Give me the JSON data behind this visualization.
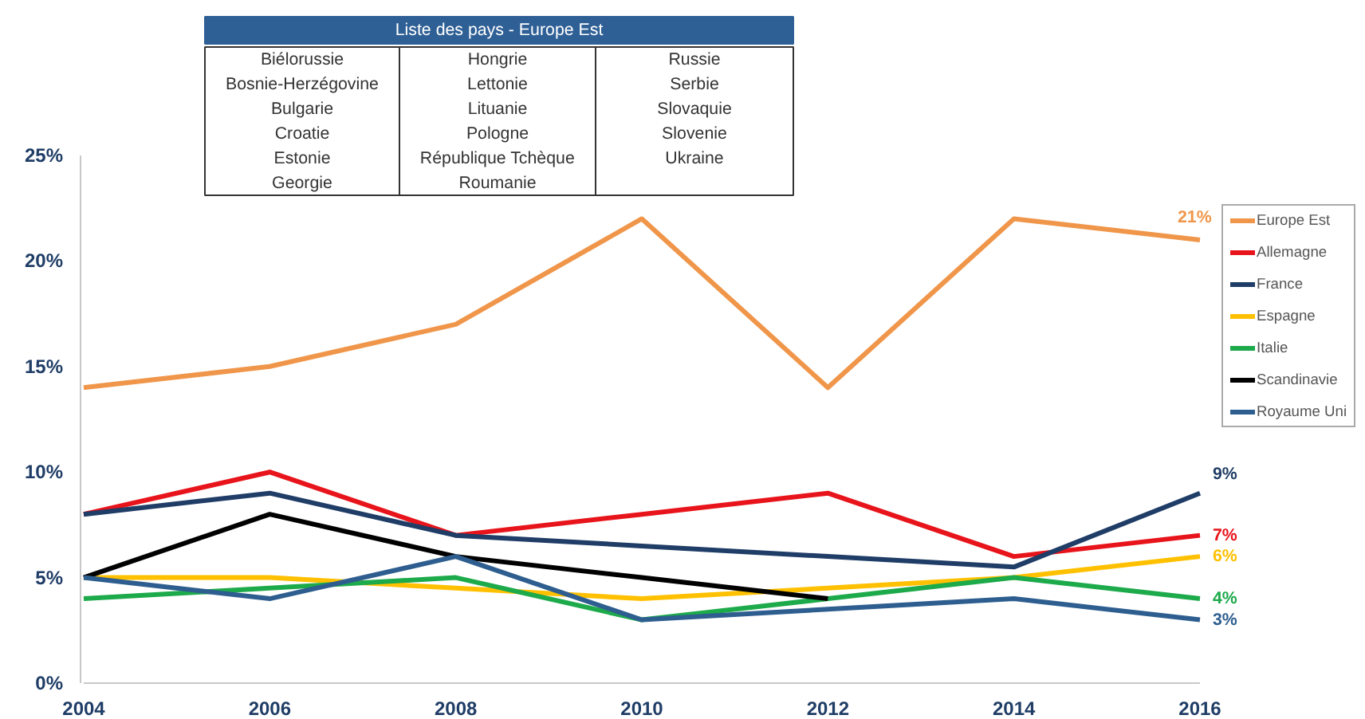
{
  "chart_data": {
    "type": "line",
    "x": [
      2004,
      2006,
      2008,
      2010,
      2012,
      2014,
      2016
    ],
    "xlim": [
      2004,
      2016
    ],
    "xticks": [
      2004,
      2006,
      2008,
      2010,
      2012,
      2014,
      2016
    ],
    "ylim": [
      0,
      25
    ],
    "yticks": [
      {
        "value": 0,
        "label": "0%"
      },
      {
        "value": 5,
        "label": "5%"
      },
      {
        "value": 10,
        "label": "10%"
      },
      {
        "value": 15,
        "label": "15%"
      },
      {
        "value": 20,
        "label": "20%"
      },
      {
        "value": 25,
        "label": "25%"
      }
    ],
    "grid": false,
    "legend": "right",
    "marker": "none",
    "line_style": "solid",
    "series": [
      {
        "name": "Europe Est",
        "color": "#f0964a",
        "values": [
          14,
          15,
          17,
          22,
          14,
          22,
          21
        ],
        "value_labels": [
          null,
          null,
          null,
          null,
          null,
          null,
          "21%"
        ]
      },
      {
        "name": "Allemagne",
        "color": "#e8141b",
        "values": [
          8,
          10,
          7,
          8,
          9,
          6,
          7
        ],
        "value_labels": [
          null,
          null,
          null,
          null,
          null,
          null,
          "7%"
        ]
      },
      {
        "name": "France",
        "color": "#1f3d66",
        "values": [
          8,
          9,
          7,
          6.5,
          6,
          5.5,
          9
        ],
        "value_labels": [
          null,
          null,
          null,
          null,
          null,
          null,
          "9%"
        ]
      },
      {
        "name": "Espagne",
        "color": "#ffc000",
        "values": [
          5,
          5,
          4.5,
          4,
          4.5,
          5,
          6
        ],
        "value_labels": [
          null,
          null,
          null,
          null,
          null,
          null,
          "6%"
        ]
      },
      {
        "name": "Italie",
        "color": "#1daa4b",
        "values": [
          4,
          4.5,
          5,
          3,
          4,
          5,
          4
        ],
        "value_labels": [
          null,
          null,
          null,
          null,
          null,
          null,
          "4%"
        ]
      },
      {
        "name": "Scandinavie",
        "color": "#000000",
        "values": [
          5,
          8,
          6,
          5,
          4,
          null,
          null
        ]
      },
      {
        "name": "Royaume Uni",
        "color": "#2e5e8f",
        "values": [
          5,
          4,
          6,
          3,
          3.5,
          4,
          3
        ],
        "value_labels": [
          null,
          null,
          null,
          null,
          null,
          null,
          "3%"
        ]
      }
    ],
    "annotations": [
      "Liste des pays - Europe Est",
      "Biélorussie",
      "Bosnie-Herzégovine",
      "Bulgarie",
      "Croatie",
      "Estonie",
      "Georgie",
      "Hongrie",
      "Lettonie",
      "Lituanie",
      "Pologne",
      "République Tchèque",
      "Roumanie",
      "Russie",
      "Serbie",
      "Slovaquie",
      "Slovenie",
      "Ukraine"
    ]
  }
}
